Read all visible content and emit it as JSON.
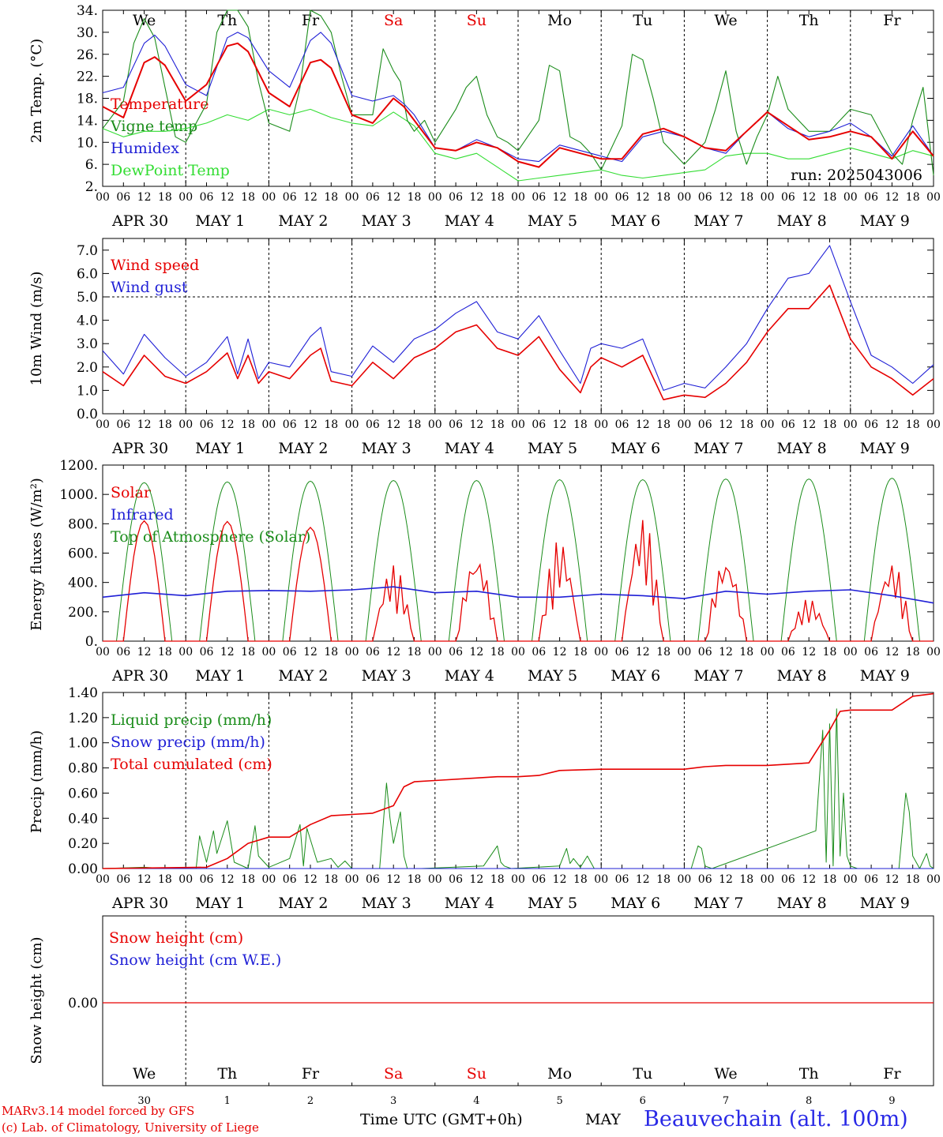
{
  "labels": {
    "run": "run: 2025043006",
    "footer_model": "MARv3.14 model forced by GFS",
    "footer_lab": "(c) Lab. of Climatology, University of Liege",
    "footer_time": "Time UTC (GMT+0h)",
    "footer_month": "MAY",
    "station": "Beauvechain (alt. 100m)"
  },
  "colors": {
    "red": "#e60000",
    "green": "#1a8c1a",
    "blue": "#1f1fd6",
    "light_green": "#33dd33",
    "black": "#000000"
  },
  "days": {
    "weekdays": [
      "We",
      "Th",
      "Fr",
      "Sa",
      "Su",
      "Mo",
      "Tu",
      "We",
      "Th",
      "Fr"
    ],
    "weekend_flags": [
      false,
      false,
      false,
      true,
      true,
      false,
      false,
      false,
      false,
      false
    ],
    "dates": [
      "APR 30",
      "MAY  1",
      "MAY  2",
      "MAY  3",
      "MAY  4",
      "MAY  5",
      "MAY  6",
      "MAY  7",
      "MAY  8",
      "MAY  9"
    ],
    "day_numbers": [
      "30",
      "1",
      "2",
      "3",
      "4",
      "5",
      "6",
      "7",
      "8",
      "9"
    ],
    "hours": [
      "00",
      "06",
      "12",
      "18"
    ],
    "final_hour": "00"
  },
  "chart_data": [
    {
      "type": "line",
      "ylabel": "2m Temp. (°C)",
      "yticks": [
        "34.",
        "30.",
        "26.",
        "22.",
        "18.",
        "14.",
        "10.",
        "6.",
        "2."
      ],
      "ylim": [
        2,
        34
      ],
      "x_unit": "hours since 2025-04-30 00 UTC",
      "legend": [
        "Temperature",
        "Vigne temp",
        "Humidex",
        "DewPoint Temp"
      ],
      "series": [
        {
          "name": "Temperature",
          "color": "red",
          "x": [
            0,
            6,
            12,
            15,
            18,
            24,
            30,
            36,
            39,
            42,
            48,
            54,
            60,
            63,
            66,
            72,
            78,
            84,
            87,
            90,
            96,
            102,
            108,
            114,
            120,
            126,
            132,
            138,
            144,
            150,
            156,
            162,
            168,
            174,
            180,
            186,
            192,
            198,
            204,
            210,
            216,
            222,
            228,
            234,
            240
          ],
          "y": [
            16.5,
            14.5,
            24.5,
            25.5,
            24,
            17.5,
            20.5,
            27.5,
            28,
            26.5,
            19,
            16.5,
            24.5,
            25,
            23.5,
            15,
            13.5,
            18,
            16.5,
            14,
            9,
            8.5,
            10,
            9,
            6.5,
            5.5,
            9,
            8,
            7,
            7,
            11.5,
            12.5,
            11,
            9,
            8.5,
            12,
            15.5,
            13,
            10.5,
            11,
            12,
            11,
            7,
            12,
            7.5
          ]
        },
        {
          "name": "Vigne temp",
          "color": "green",
          "x": [
            0,
            6,
            9,
            12,
            15,
            18,
            21,
            24,
            30,
            33,
            36,
            39,
            42,
            45,
            48,
            54,
            57,
            60,
            63,
            66,
            69,
            72,
            78,
            81,
            84,
            86,
            88,
            90,
            93,
            96,
            102,
            105,
            108,
            111,
            114,
            117,
            120,
            126,
            129,
            132,
            135,
            138,
            141,
            144,
            150,
            153,
            156,
            159,
            162,
            165,
            168,
            174,
            177,
            180,
            183,
            186,
            189,
            192,
            195,
            198,
            204,
            210,
            216,
            222,
            228,
            231,
            234,
            237,
            240
          ],
          "y": [
            12.5,
            17.5,
            28,
            32.5,
            29,
            20,
            11,
            10,
            17,
            30,
            34,
            34,
            31,
            21,
            13.5,
            12,
            20,
            34,
            33,
            30,
            22,
            15,
            15,
            27,
            23,
            21,
            14,
            12,
            14,
            10,
            16,
            20,
            22,
            15,
            11,
            10,
            8.5,
            14,
            24,
            23,
            11,
            10,
            8,
            5,
            13,
            26,
            25,
            18,
            10,
            8,
            6,
            10,
            16,
            23,
            12,
            6,
            11,
            15,
            22,
            16,
            12,
            12,
            16,
            15,
            8,
            6,
            14,
            20,
            4
          ]
        },
        {
          "name": "Humidex",
          "color": "blue",
          "x": [
            0,
            6,
            12,
            15,
            18,
            24,
            30,
            36,
            39,
            42,
            48,
            54,
            60,
            63,
            66,
            72,
            78,
            84,
            87,
            90,
            96,
            102,
            108,
            114,
            120,
            126,
            132,
            138,
            144,
            150,
            156,
            162,
            168,
            174,
            180,
            186,
            192,
            198,
            204,
            210,
            216,
            222,
            228,
            234,
            240
          ],
          "y": [
            19,
            20,
            28,
            29.5,
            27.5,
            20.5,
            18.5,
            29,
            30,
            29,
            23,
            20,
            28.5,
            30,
            28,
            18.5,
            17.5,
            18.5,
            17,
            15,
            9,
            8.5,
            10.5,
            9,
            7,
            6.5,
            9.5,
            8.5,
            7.5,
            6.5,
            11,
            12,
            11,
            9,
            8,
            12,
            15.5,
            12.5,
            11,
            12,
            13.5,
            11,
            7.5,
            13,
            7.5
          ]
        },
        {
          "name": "DewPoint Temp",
          "color": "light_green",
          "x": [
            0,
            6,
            12,
            18,
            24,
            30,
            36,
            42,
            48,
            54,
            60,
            66,
            72,
            78,
            84,
            90,
            96,
            102,
            108,
            114,
            120,
            126,
            132,
            138,
            144,
            150,
            156,
            162,
            168,
            174,
            180,
            186,
            192,
            198,
            204,
            210,
            216,
            222,
            228,
            234,
            240
          ],
          "y": [
            12.5,
            11,
            12,
            12,
            12.5,
            13.5,
            15,
            14,
            16,
            15,
            16,
            14.5,
            13.5,
            13,
            15.5,
            13,
            8,
            7,
            8,
            5.5,
            3,
            3.5,
            4,
            4.5,
            5,
            4,
            3.5,
            4,
            4.5,
            5,
            7.5,
            8,
            8,
            7,
            7,
            8,
            9,
            8,
            7,
            8.5,
            7.5
          ]
        }
      ]
    },
    {
      "type": "line",
      "ylabel": "10m Wind (m/s)",
      "yticks": [
        "7.0",
        "6.0",
        "5.0",
        "4.0",
        "3.0",
        "2.0",
        "1.0",
        "0.0"
      ],
      "ylim": [
        0,
        7.5
      ],
      "reference_line": 5.0,
      "x_unit": "hours since 2025-04-30 00 UTC",
      "legend": [
        "Wind speed",
        "Wind gust"
      ],
      "series": [
        {
          "name": "Wind speed",
          "color": "red",
          "x": [
            0,
            6,
            12,
            18,
            24,
            30,
            36,
            39,
            42,
            45,
            48,
            54,
            60,
            63,
            66,
            72,
            78,
            84,
            90,
            96,
            102,
            108,
            114,
            120,
            126,
            132,
            138,
            141,
            144,
            150,
            156,
            162,
            168,
            174,
            180,
            186,
            192,
            198,
            204,
            210,
            216,
            222,
            228,
            234,
            240
          ],
          "y": [
            1.8,
            1.2,
            2.5,
            1.6,
            1.3,
            1.8,
            2.6,
            1.5,
            2.5,
            1.3,
            1.8,
            1.5,
            2.5,
            2.8,
            1.4,
            1.2,
            2.2,
            1.5,
            2.4,
            2.8,
            3.5,
            3.8,
            2.8,
            2.5,
            3.3,
            1.9,
            0.9,
            2.0,
            2.4,
            2.0,
            2.5,
            0.6,
            0.8,
            0.7,
            1.3,
            2.2,
            3.5,
            4.5,
            4.5,
            5.5,
            3.2,
            2.0,
            1.5,
            0.8,
            1.5
          ]
        },
        {
          "name": "Wind gust",
          "color": "blue",
          "x": [
            0,
            6,
            12,
            18,
            24,
            30,
            36,
            39,
            42,
            45,
            48,
            54,
            60,
            63,
            66,
            72,
            78,
            84,
            90,
            96,
            102,
            108,
            114,
            120,
            126,
            132,
            138,
            141,
            144,
            150,
            156,
            162,
            168,
            174,
            180,
            186,
            192,
            198,
            204,
            210,
            216,
            222,
            228,
            234,
            240
          ],
          "y": [
            2.7,
            1.7,
            3.4,
            2.4,
            1.6,
            2.2,
            3.3,
            1.7,
            3.2,
            1.5,
            2.2,
            2.0,
            3.3,
            3.7,
            1.8,
            1.6,
            2.9,
            2.2,
            3.2,
            3.6,
            4.3,
            4.8,
            3.5,
            3.2,
            4.2,
            2.7,
            1.3,
            2.8,
            3.0,
            2.8,
            3.2,
            1.0,
            1.3,
            1.1,
            2.0,
            3.0,
            4.5,
            5.8,
            6.0,
            7.2,
            4.8,
            2.5,
            2.0,
            1.3,
            2.1
          ]
        }
      ]
    },
    {
      "type": "line",
      "ylabel": "Energy fluxes (W/m²)",
      "yticks": [
        "1200.",
        "1000.",
        "800.",
        "600.",
        "400.",
        "200.",
        "0."
      ],
      "ylim": [
        0,
        1200
      ],
      "x_unit": "hours since 2025-04-30 00 UTC",
      "legend": [
        "Solar",
        "Infrared",
        "Top of Atmosphere (Solar)"
      ],
      "daily_toa_peak": [
        1080,
        1085,
        1090,
        1095,
        1095,
        1100,
        1100,
        1105,
        1105,
        1110
      ],
      "series": [
        {
          "name": "Solar",
          "color": "red",
          "daily_peak": [
            820,
            815,
            775,
            520,
            610,
            700,
            850,
            590,
            290,
            550
          ]
        },
        {
          "name": "Infrared",
          "color": "blue",
          "x": [
            0,
            12,
            24,
            36,
            48,
            60,
            72,
            84,
            96,
            108,
            120,
            132,
            144,
            156,
            168,
            180,
            192,
            204,
            216,
            228,
            240
          ],
          "y": [
            300,
            330,
            310,
            340,
            345,
            340,
            350,
            370,
            330,
            340,
            300,
            300,
            320,
            310,
            290,
            340,
            320,
            340,
            350,
            310,
            260
          ]
        },
        {
          "name": "Top of Atmosphere (Solar)",
          "color": "green"
        }
      ]
    },
    {
      "type": "line",
      "ylabel": "Precip (mm/h)",
      "yticks": [
        "1.40",
        "1.20",
        "1.00",
        "0.80",
        "0.60",
        "0.40",
        "0.20",
        "0.00"
      ],
      "ylim": [
        0,
        1.4
      ],
      "x_unit": "hours since 2025-04-30 00 UTC",
      "legend": [
        "Liquid precip (mm/h)",
        "Snow precip (mm/h)",
        "Total cumulated (cm)"
      ],
      "series": [
        {
          "name": "Liquid precip (mm/h)",
          "color": "green",
          "x": [
            0,
            12,
            18,
            27,
            28,
            30,
            32,
            33,
            36,
            38,
            42,
            44,
            45,
            48,
            54,
            57,
            58,
            59,
            62,
            66,
            68,
            70,
            72,
            80,
            82,
            83,
            84,
            86,
            87,
            88,
            90,
            92,
            110,
            114,
            115,
            116,
            118,
            132,
            134,
            135,
            136,
            138,
            140,
            142,
            170,
            172,
            173,
            174,
            176,
            206,
            208,
            209,
            210,
            211,
            212,
            213,
            214,
            215,
            216,
            218,
            222,
            230,
            232,
            233,
            234,
            236,
            238,
            239,
            240
          ],
          "y": [
            0,
            0.01,
            0,
            0,
            0.26,
            0.05,
            0.3,
            0.12,
            0.38,
            0.05,
            0,
            0.34,
            0.1,
            0.01,
            0.08,
            0.35,
            0.02,
            0.32,
            0.05,
            0.08,
            0.01,
            0.06,
            0,
            0,
            0.68,
            0.4,
            0.2,
            0.45,
            0.1,
            0,
            0,
            0,
            0.02,
            0.18,
            0.05,
            0.02,
            0,
            0.02,
            0.16,
            0.04,
            0.08,
            0.01,
            0.1,
            0,
            0,
            0.18,
            0.16,
            0.02,
            0,
            0.3,
            1.1,
            0.05,
            1.15,
            0.02,
            1.27,
            0.1,
            0.6,
            0.1,
            0.02,
            0,
            0,
            0,
            0.6,
            0.45,
            0.1,
            0,
            0.12,
            0.02,
            0
          ]
        },
        {
          "name": "Snow precip (mm/h)",
          "color": "blue"
        },
        {
          "name": "Total cumulated (cm)",
          "color": "red",
          "x": [
            0,
            30,
            36,
            42,
            48,
            54,
            60,
            66,
            72,
            78,
            84,
            87,
            90,
            96,
            108,
            114,
            120,
            126,
            132,
            144,
            156,
            168,
            174,
            180,
            192,
            204,
            210,
            213,
            216,
            222,
            228,
            234,
            240
          ],
          "y": [
            0,
            0.01,
            0.08,
            0.2,
            0.25,
            0.25,
            0.35,
            0.42,
            0.43,
            0.44,
            0.5,
            0.65,
            0.69,
            0.7,
            0.72,
            0.73,
            0.73,
            0.74,
            0.78,
            0.79,
            0.79,
            0.79,
            0.81,
            0.82,
            0.82,
            0.84,
            1.1,
            1.25,
            1.26,
            1.26,
            1.26,
            1.37,
            1.39
          ]
        }
      ]
    },
    {
      "type": "line",
      "ylabel": "Snow height (cm)",
      "yticks": [
        "0.00"
      ],
      "ylim": [
        -1,
        1
      ],
      "x_unit": "hours since 2025-04-30 00 UTC",
      "legend": [
        "Snow height (cm)",
        "Snow height (cm W.E.)"
      ],
      "series": [
        {
          "name": "Snow height (cm)",
          "color": "red",
          "x": [
            0,
            240
          ],
          "y": [
            0,
            0
          ]
        },
        {
          "name": "Snow height (cm W.E.)",
          "color": "blue",
          "x": [
            0,
            240
          ],
          "y": [
            0,
            0
          ]
        }
      ]
    }
  ]
}
